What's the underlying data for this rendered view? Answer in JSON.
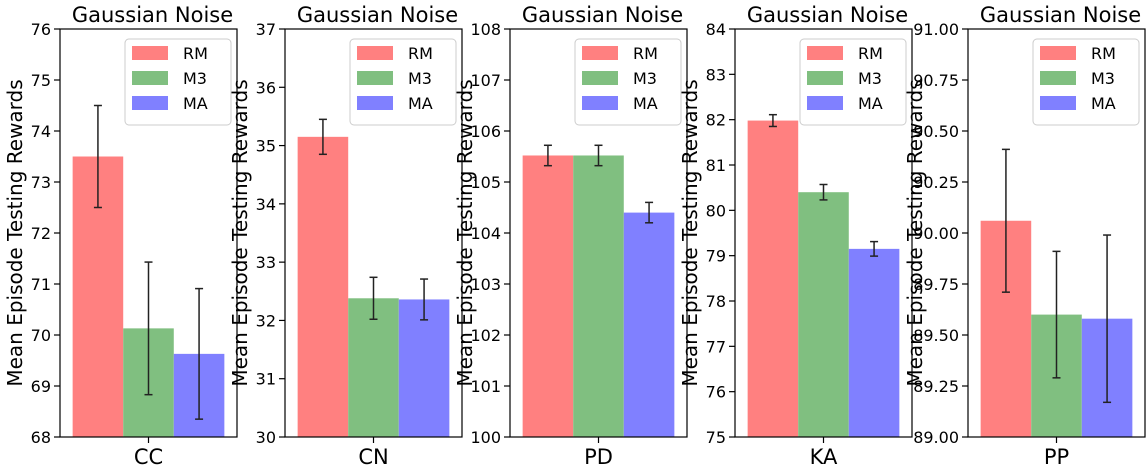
{
  "colors": {
    "RM": "#ff8080",
    "M3": "#80bf80",
    "MA": "#8080ff",
    "errorbar": "#222222",
    "axis": "#000000"
  },
  "chart_data": [
    {
      "type": "bar",
      "title": "Gaussian Noise",
      "xlabel": "CC",
      "ylabel": "Mean Episode Testing Rewards",
      "ylim": [
        68,
        76
      ],
      "yticks": [
        "68",
        "69",
        "70",
        "71",
        "72",
        "73",
        "74",
        "75",
        "76"
      ],
      "legend": [
        "RM",
        "M3",
        "MA"
      ],
      "legend_position": "top-right",
      "series": [
        {
          "name": "RM",
          "value": 73.5,
          "error": 1.0
        },
        {
          "name": "M3",
          "value": 70.13,
          "error": 1.3
        },
        {
          "name": "MA",
          "value": 69.63,
          "error": 1.28
        }
      ]
    },
    {
      "type": "bar",
      "title": "Gaussian Noise",
      "xlabel": "CN",
      "ylabel": "Mean Episode Testing Rewards",
      "ylim": [
        30,
        37
      ],
      "yticks": [
        "30",
        "31",
        "32",
        "33",
        "34",
        "35",
        "36",
        "37"
      ],
      "legend": [
        "RM",
        "M3",
        "MA"
      ],
      "legend_position": "top-right",
      "series": [
        {
          "name": "RM",
          "value": 35.15,
          "error": 0.3
        },
        {
          "name": "M3",
          "value": 32.38,
          "error": 0.36
        },
        {
          "name": "MA",
          "value": 32.36,
          "error": 0.35
        }
      ]
    },
    {
      "type": "bar",
      "title": "Gaussian Noise",
      "xlabel": "PD",
      "ylabel": "Mean Episode Testing Rewards",
      "ylim": [
        100,
        108
      ],
      "yticks": [
        "100",
        "101",
        "102",
        "103",
        "104",
        "105",
        "106",
        "107",
        "108"
      ],
      "legend": [
        "RM",
        "M3",
        "MA"
      ],
      "legend_position": "top-right",
      "series": [
        {
          "name": "RM",
          "value": 105.52,
          "error": 0.2
        },
        {
          "name": "M3",
          "value": 105.52,
          "error": 0.2
        },
        {
          "name": "MA",
          "value": 104.4,
          "error": 0.2
        }
      ]
    },
    {
      "type": "bar",
      "title": "Gaussian Noise",
      "xlabel": "KA",
      "ylabel": "Mean Episode Testing Rewards",
      "ylim": [
        75,
        84
      ],
      "yticks": [
        "75",
        "76",
        "77",
        "78",
        "79",
        "80",
        "81",
        "82",
        "83",
        "84"
      ],
      "legend": [
        "RM",
        "M3",
        "MA"
      ],
      "legend_position": "top-right",
      "series": [
        {
          "name": "RM",
          "value": 81.98,
          "error": 0.13
        },
        {
          "name": "M3",
          "value": 80.4,
          "error": 0.17
        },
        {
          "name": "MA",
          "value": 79.15,
          "error": 0.16
        }
      ]
    },
    {
      "type": "bar",
      "title": "Gaussian Noise",
      "xlabel": "PP",
      "ylabel": "Mean Episode Testing Rewards",
      "ylim": [
        89.0,
        91.0
      ],
      "yticks": [
        "89.00",
        "89.25",
        "89.50",
        "89.75",
        "90.00",
        "90.25",
        "90.50",
        "90.75",
        "91.00"
      ],
      "legend": [
        "RM",
        "M3",
        "MA"
      ],
      "legend_position": "top-right",
      "series": [
        {
          "name": "RM",
          "value": 90.06,
          "error": 0.35
        },
        {
          "name": "M3",
          "value": 89.6,
          "error": 0.31
        },
        {
          "name": "MA",
          "value": 89.58,
          "error": 0.41
        }
      ]
    }
  ]
}
